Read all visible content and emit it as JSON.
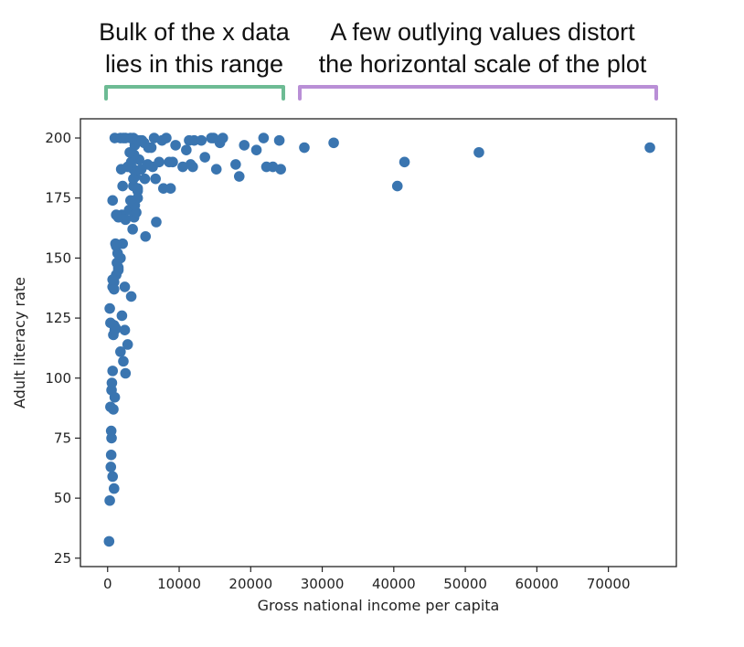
{
  "annotations": {
    "left_line1": "Bulk of the x data",
    "left_line2": "lies in this range",
    "right_line1": "A few outlying values distort",
    "right_line2": "the horizontal scale of the plot",
    "left_bracket_color": "#6dbb94",
    "right_bracket_color": "#b98fd6"
  },
  "chart_data": {
    "type": "scatter",
    "title": "",
    "xlabel": "Gross national income per capita",
    "ylabel": "Adult literacy rate",
    "xlim": [
      -3800,
      79500
    ],
    "ylim": [
      21.5,
      208
    ],
    "xticks": [
      0,
      10000,
      20000,
      30000,
      40000,
      50000,
      60000,
      70000
    ],
    "yticks": [
      25,
      50,
      75,
      100,
      125,
      150,
      175,
      200
    ],
    "grid": false,
    "marker_color": "#3a75b0",
    "series": [
      {
        "x": [
          200,
          300,
          450,
          500,
          550,
          500,
          400,
          550,
          600,
          700,
          800,
          700,
          900,
          1000,
          900,
          800,
          1000,
          1100,
          300,
          400,
          700,
          900,
          1200,
          1500,
          1800,
          2100,
          2400,
          2000,
          2200,
          2500,
          2800,
          3300,
          1800,
          2400,
          1400,
          1200,
          1100,
          900,
          700,
          1300,
          1500,
          1700,
          2000,
          2500,
          3000,
          3500,
          3700,
          4000,
          3800,
          4200,
          5300,
          6800,
          3600,
          3200,
          4200,
          3600,
          2100,
          1500,
          700,
          1200,
          2800,
          1900,
          3300,
          4400,
          3700,
          3100,
          3800,
          4600,
          5100,
          6100,
          7600,
          8200,
          6500,
          5700,
          9500,
          11000,
          12100,
          13600,
          15200,
          18400,
          20800,
          22200,
          24200,
          23100,
          17900,
          19100,
          15700,
          14500,
          11400,
          11900,
          9100,
          8600,
          7200,
          6300,
          5600,
          4700,
          3900,
          3600,
          4200,
          5200,
          6700,
          7800,
          8800,
          10500,
          11600,
          13100,
          14800,
          16100,
          21800,
          24000,
          1000,
          1800,
          2200,
          2500,
          3200,
          3600,
          4200,
          4800,
          27500,
          31600,
          40500,
          41500,
          51900,
          75800
        ],
        "y": [
          32,
          49,
          63,
          68,
          75,
          78,
          88,
          95,
          98,
          103,
          87,
          59,
          54,
          92,
          122,
          118,
          120,
          121,
          129,
          123,
          138,
          140,
          143,
          146,
          150,
          156,
          138,
          126,
          107,
          102,
          114,
          134,
          111,
          120,
          152,
          155,
          156,
          137,
          141,
          148,
          145,
          150,
          168,
          166,
          170,
          162,
          167,
          169,
          172,
          175,
          159,
          165,
          180,
          174,
          178,
          187,
          180,
          167,
          174,
          168,
          188,
          187,
          190,
          191,
          193,
          194,
          197,
          199,
          198,
          196,
          199,
          200,
          200,
          196,
          197,
          195,
          199,
          192,
          187,
          184,
          195,
          188,
          187,
          188,
          189,
          197,
          198,
          200,
          199,
          188,
          190,
          190,
          190,
          188,
          189,
          187,
          184,
          183,
          179,
          183,
          183,
          179,
          179,
          188,
          189,
          199,
          200,
          200,
          200,
          199,
          200,
          200,
          200,
          200,
          200,
          200,
          199,
          199,
          196,
          198,
          180,
          190,
          194,
          196
        ]
      }
    ]
  }
}
